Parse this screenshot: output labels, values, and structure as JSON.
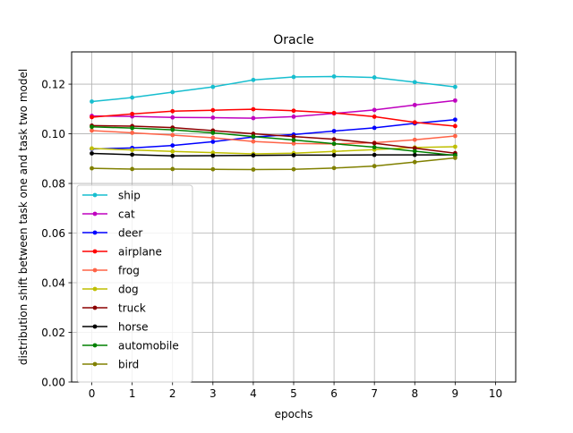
{
  "chart_data": {
    "type": "line",
    "title": "Oracle",
    "xlabel": "epochs",
    "ylabel": "distribution shift between task one and task two model",
    "xlim": [
      -0.5,
      10.5
    ],
    "ylim": [
      0.0,
      0.133
    ],
    "xticks": [
      0,
      1,
      2,
      3,
      4,
      5,
      6,
      7,
      8,
      9,
      10
    ],
    "yticks": [
      0.0,
      0.02,
      0.04,
      0.06,
      0.08,
      0.1,
      0.12
    ],
    "ytick_labels": [
      "0.00",
      "0.02",
      "0.04",
      "0.06",
      "0.08",
      "0.10",
      "0.12"
    ],
    "grid": true,
    "legend_position": "lower left",
    "x": [
      0,
      1,
      2,
      3,
      4,
      5,
      6,
      7,
      8,
      9
    ],
    "series": [
      {
        "name": "ship",
        "color": "#17becf",
        "values": [
          0.113,
          0.1146,
          0.1168,
          0.1189,
          0.1217,
          0.1229,
          0.1231,
          0.1227,
          0.1208,
          0.1189
        ]
      },
      {
        "name": "cat",
        "color": "#bf00bf",
        "values": [
          0.1072,
          0.107,
          0.1066,
          0.1065,
          0.1063,
          0.1069,
          0.1082,
          0.1096,
          0.1116,
          0.1134
        ]
      },
      {
        "name": "deer",
        "color": "#0000ff",
        "values": [
          0.0939,
          0.0943,
          0.0953,
          0.0968,
          0.0987,
          0.0997,
          0.1011,
          0.1024,
          0.1042,
          0.1057
        ]
      },
      {
        "name": "airplane",
        "color": "#ff0000",
        "values": [
          0.1067,
          0.108,
          0.1091,
          0.1095,
          0.1099,
          0.1093,
          0.1084,
          0.1069,
          0.1046,
          0.1031
        ]
      },
      {
        "name": "frog",
        "color": "#ff6347",
        "values": [
          0.1013,
          0.1004,
          0.0995,
          0.0984,
          0.0969,
          0.0961,
          0.0959,
          0.0964,
          0.0976,
          0.0991
        ]
      },
      {
        "name": "dog",
        "color": "#bfbf00",
        "values": [
          0.0941,
          0.0935,
          0.0929,
          0.0924,
          0.0919,
          0.0922,
          0.0929,
          0.0936,
          0.0945,
          0.0948
        ]
      },
      {
        "name": "truck",
        "color": "#8b0000",
        "values": [
          0.1033,
          0.1031,
          0.1025,
          0.1013,
          0.1,
          0.0989,
          0.0978,
          0.0962,
          0.0942,
          0.0922
        ]
      },
      {
        "name": "horse",
        "color": "#000000",
        "values": [
          0.0921,
          0.0916,
          0.0911,
          0.0912,
          0.0913,
          0.0914,
          0.0914,
          0.0915,
          0.0915,
          0.0915
        ]
      },
      {
        "name": "automobile",
        "color": "#008000",
        "values": [
          0.1028,
          0.1023,
          0.1016,
          0.1004,
          0.0989,
          0.0975,
          0.096,
          0.0946,
          0.093,
          0.0913
        ]
      },
      {
        "name": "bird",
        "color": "#808000",
        "values": [
          0.0861,
          0.0858,
          0.0858,
          0.0857,
          0.0856,
          0.0857,
          0.0862,
          0.087,
          0.0886,
          0.0903
        ]
      }
    ]
  }
}
